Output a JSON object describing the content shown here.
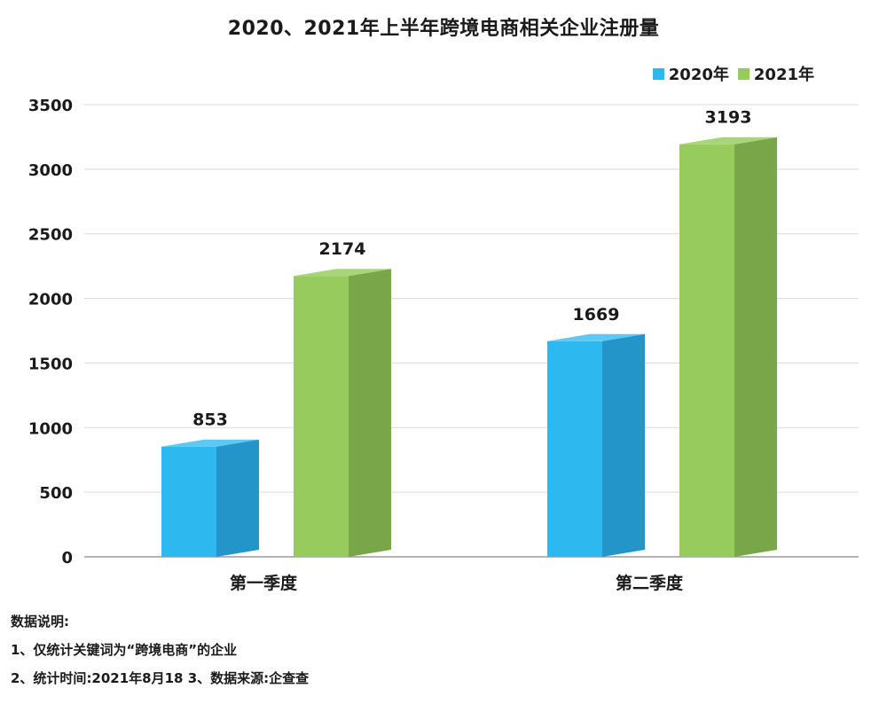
{
  "chart_data": {
    "type": "bar",
    "title": "2020、2021年上半年跨境电商相关企业注册量",
    "categories": [
      "第一季度",
      "第二季度"
    ],
    "series": [
      {
        "name": "2020年",
        "values": [
          853,
          1669
        ],
        "color": "#2eb8f0",
        "side_color": "#2495c8",
        "top_color": "#5cc8f3"
      },
      {
        "name": "2021年",
        "values": [
          2174,
          3193
        ],
        "color": "#98cb5e",
        "side_color": "#7aa64a",
        "top_color": "#a9d57a"
      }
    ],
    "ylim": [
      0,
      3500
    ],
    "yticks": [
      0,
      500,
      1000,
      1500,
      2000,
      2500,
      3000,
      3500
    ],
    "grid": true,
    "legend_position": "top-right"
  },
  "notes": {
    "heading": "数据说明:",
    "line1": "1、仅统计关键词为“跨境电商”的企业",
    "line2": "2、统计时间:2021年8月18  3、数据来源:企查查"
  }
}
